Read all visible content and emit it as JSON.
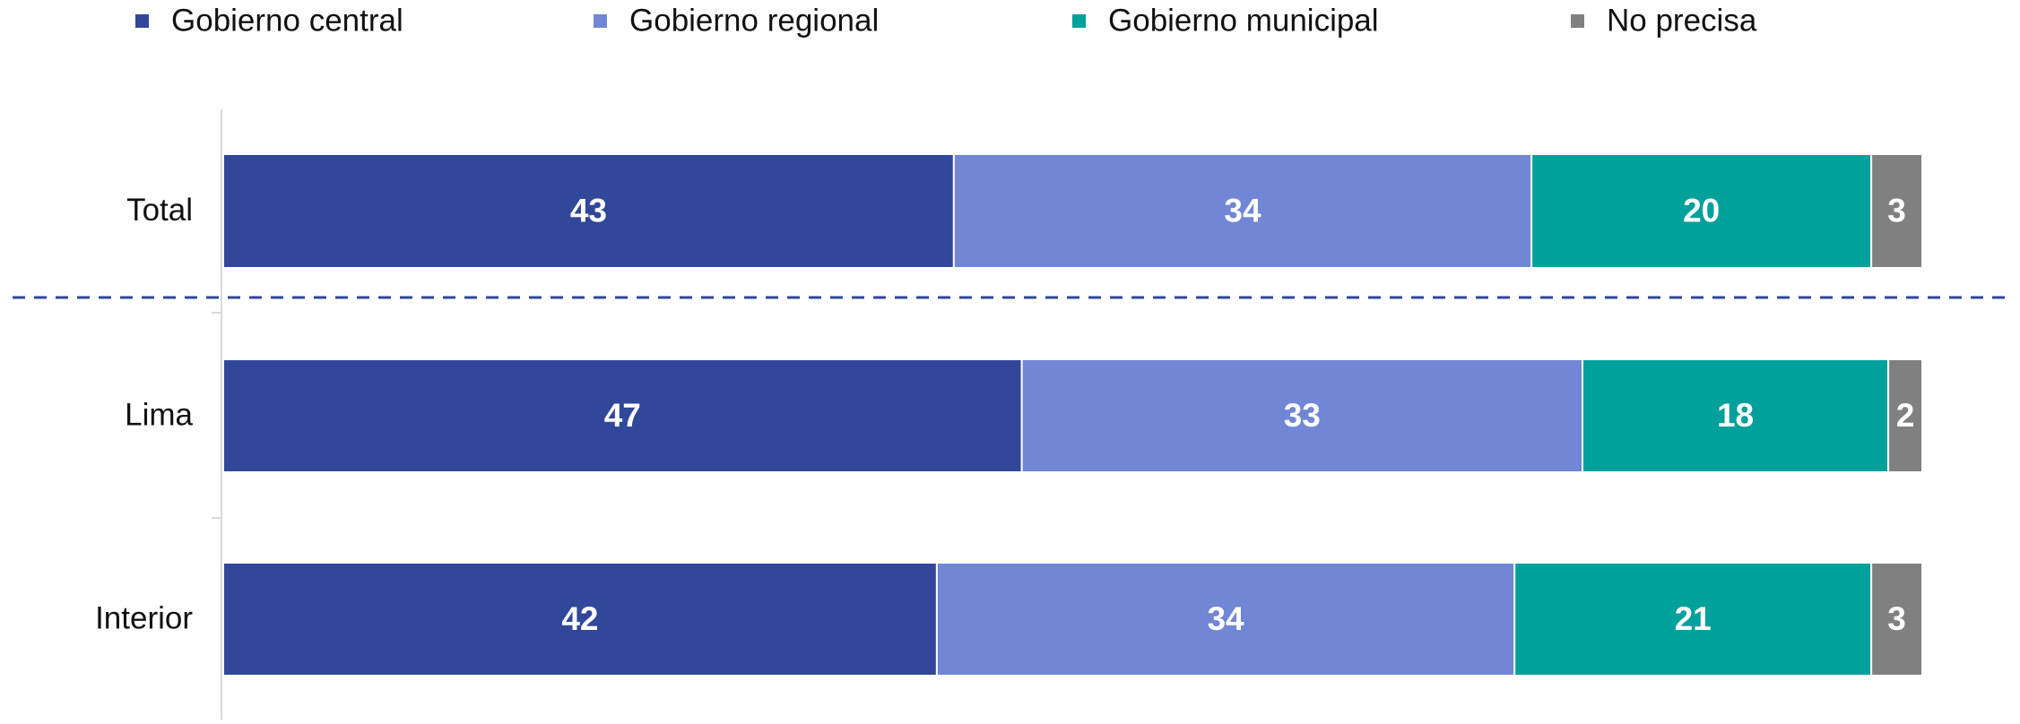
{
  "chart_data": {
    "type": "stacked-bar-horizontal",
    "categories": [
      "Total",
      "Lima",
      "Interior"
    ],
    "series": [
      {
        "name": "Gobierno central",
        "color": "#31479a",
        "values": [
          43,
          47,
          42
        ]
      },
      {
        "name": "Gobierno regional",
        "color": "#7186d4",
        "values": [
          34,
          33,
          34
        ]
      },
      {
        "name": "Gobierno municipal",
        "color": "#00a09b",
        "values": [
          20,
          18,
          21
        ]
      },
      {
        "name": "No precisa",
        "color": "#808080",
        "values": [
          3,
          2,
          3
        ]
      }
    ]
  }
}
